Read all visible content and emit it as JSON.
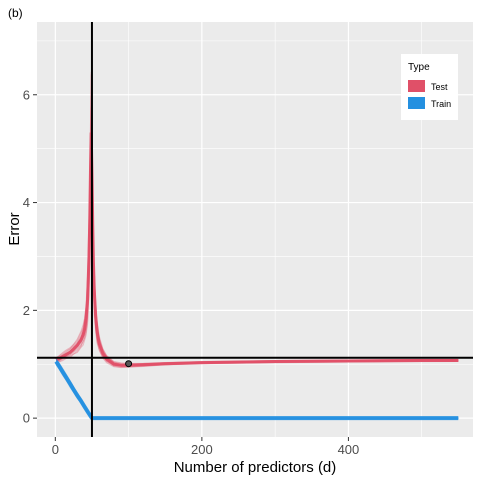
{
  "panel_tag": "(b)",
  "chart_data": {
    "type": "line",
    "title": "",
    "xlabel": "Number of predictors (d)",
    "ylabel": "Error",
    "xlim": [
      -25,
      570
    ],
    "ylim": [
      -0.35,
      7.35
    ],
    "xticks": [
      0,
      200,
      400
    ],
    "yticks": [
      0,
      2,
      4,
      6
    ],
    "grid": true,
    "legend": {
      "title": "Type",
      "position": "top-right"
    },
    "series": [
      {
        "name": "Test",
        "color": "#E05068",
        "x": [
          1,
          5,
          10,
          15,
          20,
          25,
          30,
          35,
          38,
          40,
          42,
          44,
          46,
          47,
          48,
          49,
          50,
          51,
          52,
          53,
          55,
          57,
          60,
          65,
          70,
          80,
          90,
          100,
          120,
          150,
          200,
          250,
          300,
          400,
          500,
          550
        ],
        "y": [
          1.08,
          1.1,
          1.14,
          1.18,
          1.22,
          1.28,
          1.35,
          1.45,
          1.55,
          1.65,
          1.85,
          2.2,
          3.0,
          3.7,
          4.6,
          5.3,
          4.5,
          3.6,
          2.9,
          2.4,
          1.9,
          1.6,
          1.38,
          1.2,
          1.1,
          1.0,
          0.98,
          0.98,
          0.99,
          1.01,
          1.03,
          1.04,
          1.05,
          1.06,
          1.07,
          1.07
        ],
        "spread": [
          0.05,
          0.06,
          0.07,
          0.08,
          0.09,
          0.1,
          0.12,
          0.15,
          0.18,
          0.22,
          0.3,
          0.45,
          0.7,
          0.9,
          1.0,
          1.2,
          1.0,
          0.8,
          0.6,
          0.45,
          0.3,
          0.2,
          0.13,
          0.09,
          0.07,
          0.05,
          0.04,
          0.035,
          0.03,
          0.025,
          0.02,
          0.02,
          0.02,
          0.02,
          0.02,
          0.02
        ]
      },
      {
        "name": "Train",
        "color": "#2490E0",
        "x": [
          1,
          5,
          10,
          15,
          20,
          25,
          30,
          35,
          40,
          45,
          49,
          50,
          60,
          100,
          200,
          300,
          400,
          500,
          550
        ],
        "y": [
          1.05,
          0.97,
          0.86,
          0.75,
          0.64,
          0.53,
          0.42,
          0.32,
          0.21,
          0.1,
          0.02,
          0.0,
          0.0,
          0.0,
          0.0,
          0.0,
          0.0,
          0.0,
          0.0
        ],
        "spread": [
          0.06,
          0.06,
          0.06,
          0.06,
          0.06,
          0.055,
          0.05,
          0.045,
          0.035,
          0.025,
          0.01,
          0.0,
          0.0,
          0.0,
          0.0,
          0.0,
          0.0,
          0.0,
          0.0
        ]
      }
    ],
    "reference_lines": {
      "vertical_x": 50,
      "horizontal_y": 1.12
    },
    "highlight_point": {
      "x": 100,
      "y": 1.01
    }
  }
}
